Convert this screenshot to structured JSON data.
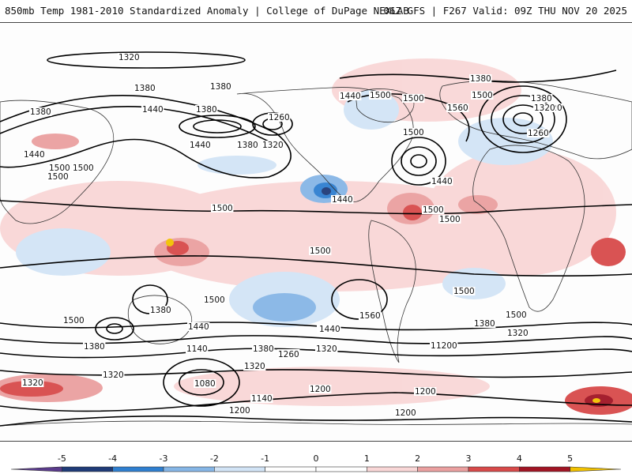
{
  "header": {
    "left_title": "850mb Temp 1981-2010 Standardized Anomaly | College of DuPage NEXLAB",
    "right_title": "06Z GFS | F267 Valid: 09Z THU NOV 20 2025"
  },
  "map": {
    "projection": "global cylindrical",
    "field": "850mb temperature standardized anomaly (shaded) with geopotential height contours",
    "contour_labels": [
      "1320",
      "1380",
      "1440",
      "1380",
      "1440",
      "1380",
      "1260",
      "1500",
      "1440",
      "1320",
      "1380",
      "1380",
      "1440",
      "1380",
      "1320",
      "1500",
      "1500",
      "1560",
      "1500",
      "1380",
      "1320",
      "1260",
      "1500",
      "1440",
      "1500",
      "1500",
      "1500",
      "1440",
      "1500",
      "1500",
      "1500",
      "1500",
      "1380",
      "1500",
      "1440",
      "1500",
      "1440",
      "1560",
      "1440",
      "1380",
      "1320",
      "1260",
      "1500",
      "1380",
      "1140",
      "1380",
      "1260",
      "1320",
      "1200",
      "1320",
      "1260",
      "1080",
      "1200",
      "1200",
      "1320",
      "1140",
      "1200",
      "1200",
      "1320"
    ],
    "colors": {
      "neg5": "#5a3b8c",
      "neg4": "#1f3b78",
      "neg3": "#2f7fd0",
      "neg2": "#86b6e6",
      "neg1": "#d2e4f6",
      "pos1": "#f9d7d7",
      "pos2": "#eba0a0",
      "pos3": "#d84a4a",
      "pos4": "#a11524",
      "pos5": "#f2c200"
    }
  },
  "colorbar": {
    "tick_labels": [
      "-5",
      "-4",
      "-3",
      "-2",
      "-1",
      "0",
      "1",
      "2",
      "3",
      "4",
      "5"
    ],
    "colors": [
      "#5a3b8c",
      "#1f3b78",
      "#2f7fd0",
      "#86b6e6",
      "#d2e4f6",
      "#ffffff",
      "#ffffff",
      "#f9d7d7",
      "#eba0a0",
      "#d84a4a",
      "#a11524",
      "#f2c200"
    ]
  }
}
